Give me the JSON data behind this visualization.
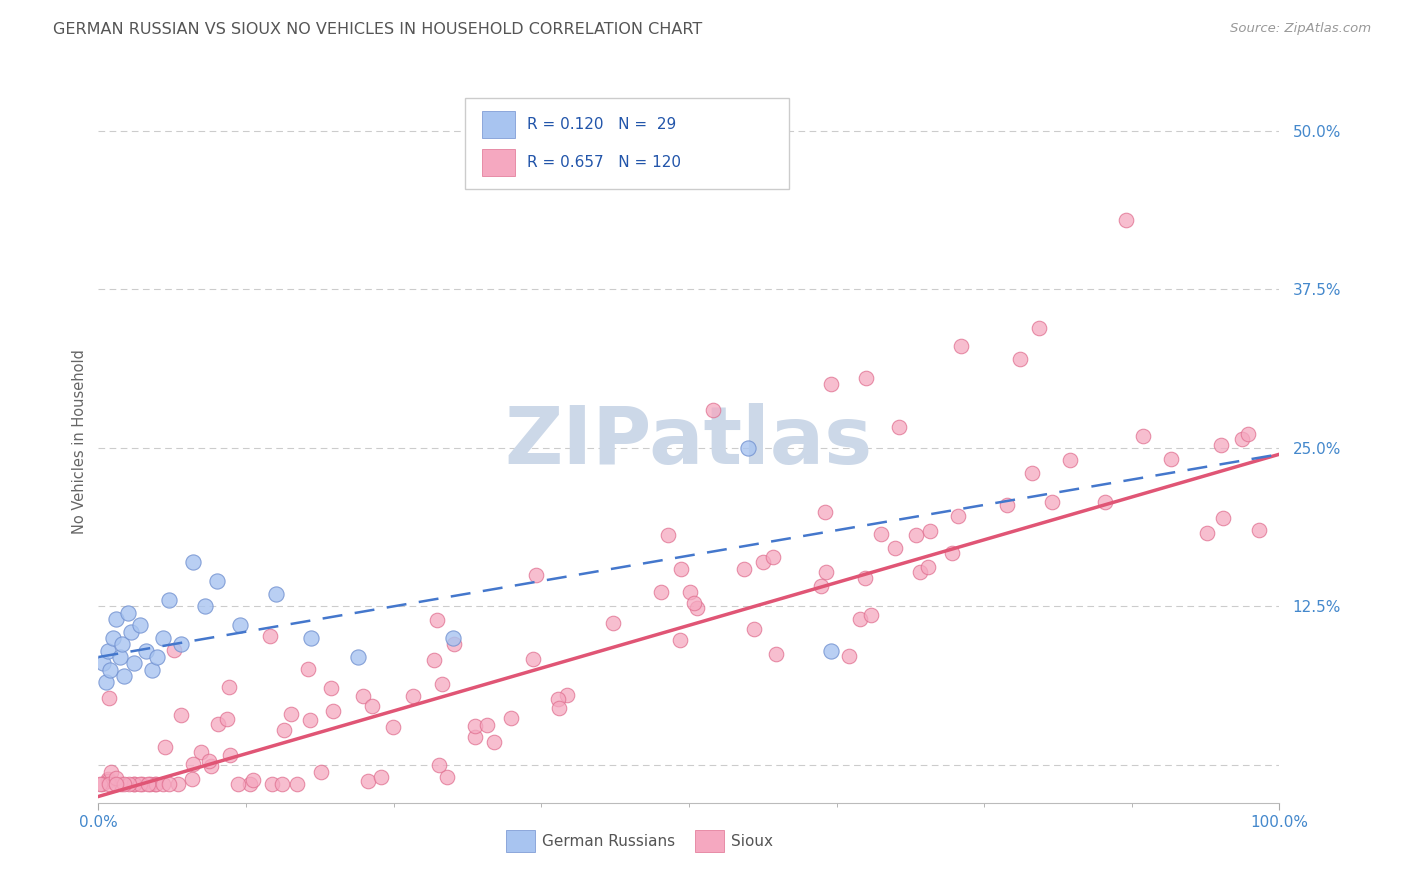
{
  "title": "GERMAN RUSSIAN VS SIOUX NO VEHICLES IN HOUSEHOLD CORRELATION CHART",
  "source": "Source: ZipAtlas.com",
  "ylabel": "No Vehicles in Household",
  "color_german": "#a8c4f0",
  "color_sioux": "#f5a8c0",
  "color_german_edge": "#7090d0",
  "color_sioux_edge": "#e07090",
  "line_color_german": "#4477cc",
  "line_color_sioux": "#e05575",
  "watermark_color": "#ccd8e8",
  "background_color": "#ffffff",
  "grid_color": "#cccccc",
  "title_color": "#555555",
  "tick_label_color": "#4488cc",
  "legend_text_color": "#2255aa",
  "xlim": [
    0.0,
    100.0
  ],
  "ylim": [
    -3.0,
    54.0
  ],
  "yticks": [
    0.0,
    12.5,
    25.0,
    37.5,
    50.0
  ],
  "ytick_labels": [
    "",
    "12.5%",
    "25.0%",
    "37.5%",
    "50.0%"
  ],
  "sioux_intercept": -2.5,
  "sioux_slope": 0.27,
  "german_intercept": 8.5,
  "german_slope": 0.16
}
